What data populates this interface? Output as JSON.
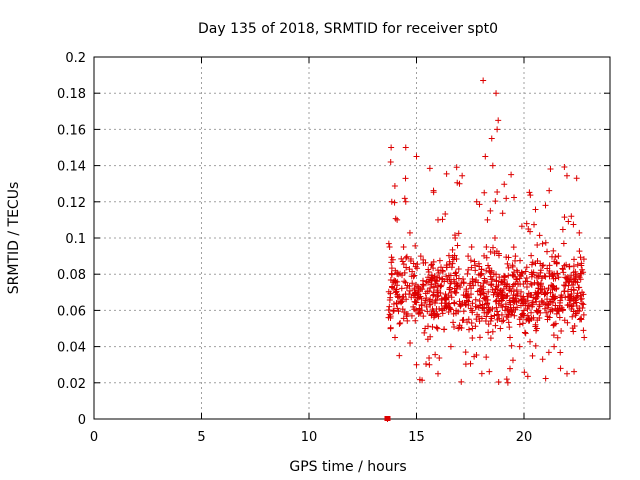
{
  "chart_data": {
    "type": "scatter",
    "title": "Day 135 of 2018, SRMTID for receiver spt0",
    "xlabel": "GPS time / hours",
    "ylabel": "SRMTID / TECUs",
    "xlim": [
      0,
      24
    ],
    "ylim": [
      0,
      0.2
    ],
    "xticks": [
      0,
      5,
      10,
      15,
      20
    ],
    "xtick_labels": [
      "0",
      "5",
      "10",
      "15",
      "20"
    ],
    "yticks": [
      0,
      0.02,
      0.04,
      0.06,
      0.08,
      0.1,
      0.12,
      0.14,
      0.16,
      0.18,
      0.2
    ],
    "ytick_labels": [
      "0",
      "0.02",
      "0.04",
      "0.06",
      "0.08",
      "0.1",
      "0.12",
      "0.14",
      "0.16",
      "0.18",
      "0.2"
    ],
    "grid": true,
    "legend": "none",
    "marker": "+",
    "color": "#dd0000",
    "time_range": [
      13.7,
      22.8
    ],
    "typical_range": [
      0.04,
      0.1
    ],
    "series": [
      {
        "x": [
          13.65,
          13.7,
          13.75,
          13.8,
          13.82,
          13.85,
          13.9,
          13.95,
          14.0,
          14.05,
          14.1,
          14.15,
          14.2,
          14.3,
          14.4,
          14.5,
          14.6,
          14.7,
          14.8,
          15.0,
          15.2,
          15.4,
          15.6,
          15.8,
          16.0,
          16.2,
          16.4,
          16.6,
          16.8,
          17.0,
          17.2,
          17.4,
          17.6,
          17.8,
          18.0,
          18.1,
          18.2,
          18.3,
          18.4,
          18.5,
          18.6,
          18.7,
          18.8,
          18.9,
          19.0,
          19.2,
          19.4,
          19.6,
          19.8,
          20.0,
          20.2,
          20.4,
          20.6,
          20.8,
          21.0,
          21.2,
          21.4,
          21.6,
          21.8,
          22.0,
          22.2,
          22.4,
          22.6,
          22.7,
          22.8,
          14.5,
          15.0,
          16.0,
          17.0,
          18.15,
          18.25,
          18.55,
          18.65,
          18.75,
          18.85,
          19.25,
          19.35,
          21.7,
          22.45,
          22.5
        ],
        "y": [
          0.0,
          0.056,
          0.095,
          0.142,
          0.15,
          0.12,
          0.088,
          0.06,
          0.045,
          0.07,
          0.11,
          0.08,
          0.035,
          0.065,
          0.095,
          0.12,
          0.058,
          0.042,
          0.075,
          0.145,
          0.09,
          0.05,
          0.03,
          0.07,
          0.11,
          0.06,
          0.085,
          0.04,
          0.1,
          0.065,
          0.075,
          0.09,
          0.05,
          0.12,
          0.08,
          0.187,
          0.145,
          0.11,
          0.06,
          0.155,
          0.08,
          0.18,
          0.165,
          0.05,
          0.07,
          0.022,
          0.135,
          0.09,
          0.04,
          0.06,
          0.105,
          0.08,
          0.05,
          0.07,
          0.118,
          0.065,
          0.04,
          0.09,
          0.06,
          0.025,
          0.112,
          0.08,
          0.055,
          0.07,
          0.045,
          0.15,
          0.03,
          0.025,
          0.13,
          0.125,
          0.095,
          0.14,
          0.1,
          0.16,
          0.065,
          0.02,
          0.045,
          0.028,
          0.133,
          0.06
        ]
      }
    ]
  }
}
